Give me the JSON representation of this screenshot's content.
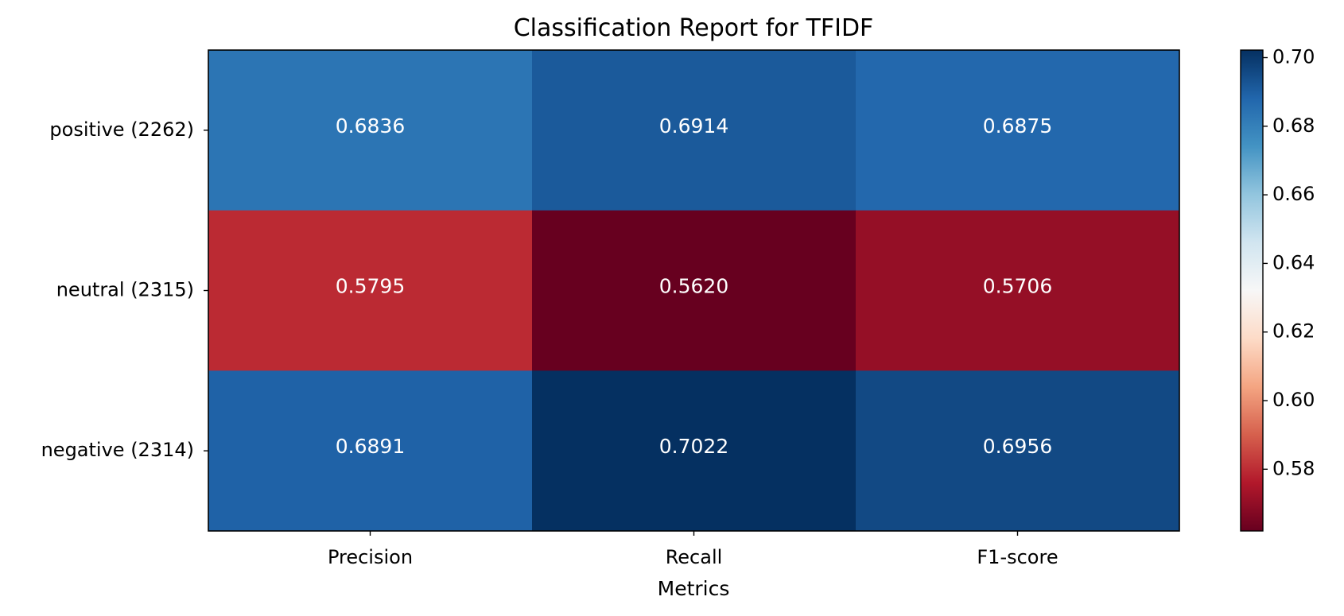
{
  "chart_data": {
    "type": "heatmap",
    "title": "Classification Report for TFIDF",
    "xlabel": "Metrics",
    "ylabel": "",
    "columns": [
      "Precision",
      "Recall",
      "F1-score"
    ],
    "rows": [
      "positive (2262)",
      "neutral (2315)",
      "negative (2314)"
    ],
    "values": [
      [
        0.6836,
        0.6914,
        0.6875
      ],
      [
        0.5795,
        0.562,
        0.5706
      ],
      [
        0.6891,
        0.7022,
        0.6956
      ]
    ],
    "value_labels": [
      [
        "0.6836",
        "0.6914",
        "0.6875"
      ],
      [
        "0.5795",
        "0.5620",
        "0.5706"
      ],
      [
        "0.6891",
        "0.7022",
        "0.6956"
      ]
    ],
    "colormap": "RdBu",
    "color_range": [
      0.562,
      0.7022
    ],
    "colorbar_ticks": [
      0.58,
      0.6,
      0.62,
      0.64,
      0.66,
      0.68,
      0.7
    ],
    "colorbar_tick_labels": [
      "0.58",
      "0.60",
      "0.62",
      "0.64",
      "0.66",
      "0.68",
      "0.70"
    ],
    "cell_text_color": "#ffffff",
    "grid": false
  }
}
